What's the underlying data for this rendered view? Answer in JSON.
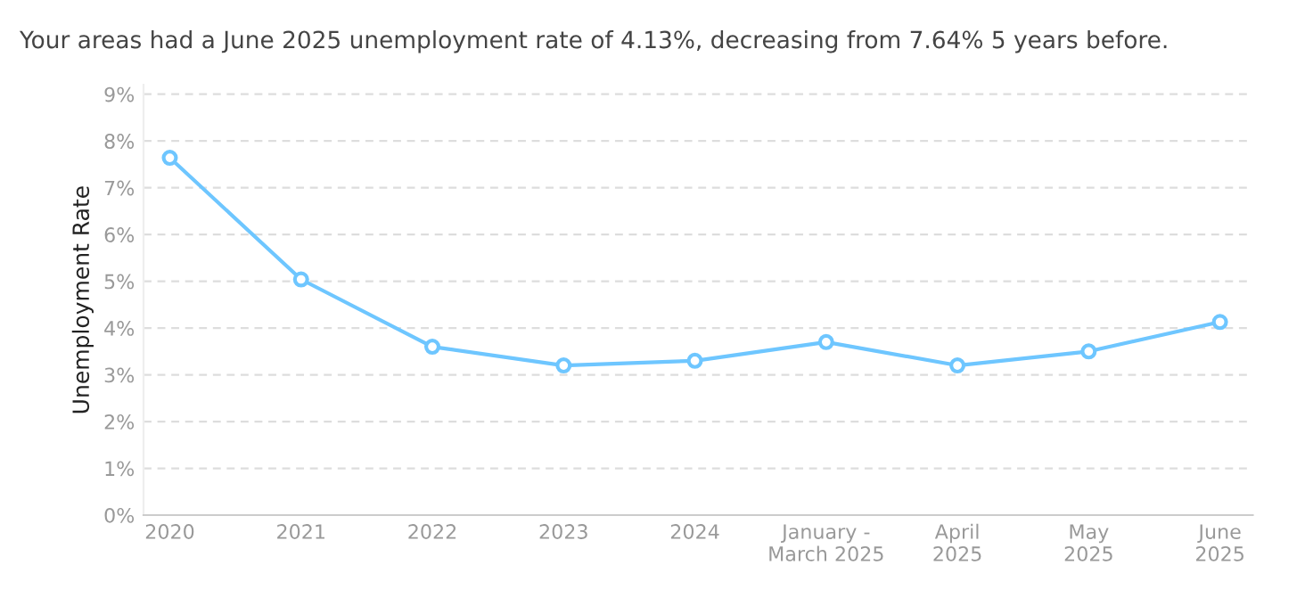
{
  "chart_data": {
    "type": "line",
    "title": "Your areas had a June 2025 unemployment rate of 4.13%, decreasing from 7.64% 5 years before.",
    "ylabel": "Unemployment Rate",
    "categories": [
      "2020",
      "2021",
      "2022",
      "2023",
      "2024",
      "January -\nMarch 2025",
      "April\n2025",
      "May\n2025",
      "June\n2025"
    ],
    "series": [
      {
        "color": "#6ec6ff",
        "values": [
          7.64,
          5.04,
          3.6,
          3.2,
          3.3,
          3.7,
          3.2,
          3.5,
          4.13
        ]
      }
    ],
    "ylim": [
      0,
      9.2
    ],
    "yticks": [
      {
        "value": 0,
        "label": "0%"
      },
      {
        "value": 1,
        "label": "1%"
      },
      {
        "value": 2,
        "label": "2%"
      },
      {
        "value": 3,
        "label": "3%"
      },
      {
        "value": 4,
        "label": "4%"
      },
      {
        "value": 5,
        "label": "5%"
      },
      {
        "value": 6,
        "label": "6%"
      },
      {
        "value": 7,
        "label": "7%"
      },
      {
        "value": 8,
        "label": "8%"
      },
      {
        "value": 9,
        "label": "9%"
      }
    ],
    "grid": "y",
    "marker": "circle",
    "line_style": "solid"
  }
}
